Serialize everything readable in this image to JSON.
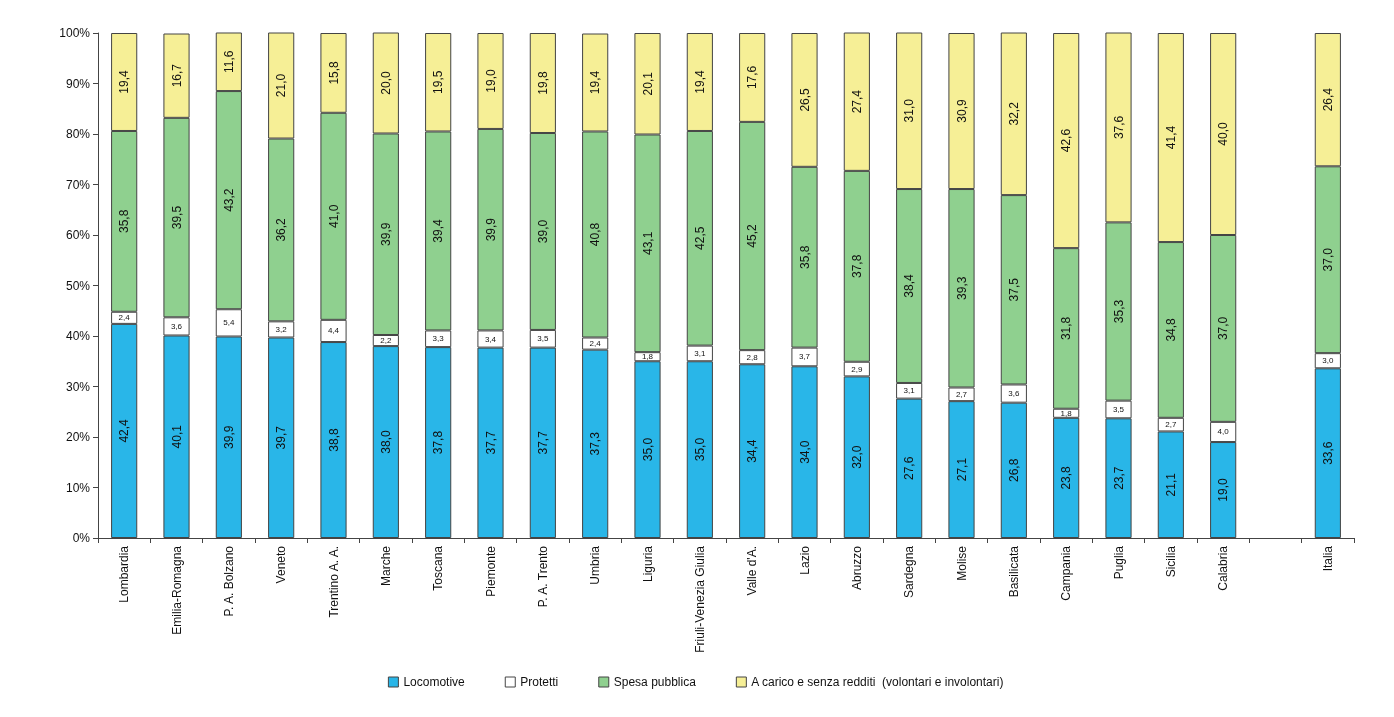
{
  "chart_data": {
    "type": "bar",
    "stacked": true,
    "categories": [
      "Lombardia",
      "Emilia-Romagna",
      "P. A. Bolzano",
      "Veneto",
      "Trentino A. A.",
      "Marche",
      "Toscana",
      "Piemonte",
      "P. A. Trento",
      "Umbria",
      "Liguria",
      "Friuli-Venezia Giulia",
      "Valle d'A.",
      "Lazio",
      "Abruzzo",
      "Sardegna",
      "Molise",
      "Basilicata",
      "Campania",
      "Puglia",
      "Sicilia",
      "Calabria",
      null,
      "Italia"
    ],
    "series": [
      {
        "name": "Locomotive",
        "color": "#29b6e8",
        "values": [
          42.4,
          40.1,
          39.9,
          39.7,
          38.8,
          38.0,
          37.8,
          37.7,
          37.7,
          37.3,
          35.0,
          35.0,
          34.4,
          34.0,
          32.0,
          27.6,
          27.1,
          26.8,
          23.8,
          23.7,
          21.1,
          19.0,
          null,
          33.6
        ],
        "value_labels": [
          "42,4",
          "40,1",
          "39,9",
          "39,7",
          "38,8",
          "38,0",
          "37,8",
          "37,7",
          "37,7",
          "37,3",
          "35,0",
          "35,0",
          "34,4",
          "34,0",
          "32,0",
          "27,6",
          "27,1",
          "26,8",
          "23,8",
          "23,7",
          "21,1",
          "19,0",
          null,
          "33,6"
        ]
      },
      {
        "name": "Protetti",
        "color": "#ffffff",
        "values": [
          2.4,
          3.6,
          5.4,
          3.2,
          4.4,
          2.2,
          3.3,
          3.4,
          3.5,
          2.4,
          1.8,
          3.1,
          2.8,
          3.7,
          2.9,
          3.1,
          2.7,
          3.6,
          1.8,
          3.5,
          2.7,
          4.0,
          null,
          3.0
        ],
        "value_labels": [
          "2,4",
          "3,6",
          "5,4",
          "3,2",
          "4,4",
          "2,2",
          "3,3",
          "3,4",
          "3,5",
          "2,4",
          "1,8",
          "3,1",
          "2,8",
          "3,7",
          "2,9",
          "3,1",
          "2,7",
          "3,6",
          "1,8",
          "3,5",
          "2,7",
          "4,0",
          null,
          "3,0"
        ]
      },
      {
        "name": "Spesa pubblica",
        "color": "#8fd08f",
        "values": [
          35.8,
          39.5,
          43.2,
          36.2,
          41.0,
          39.9,
          39.4,
          39.9,
          39.0,
          40.8,
          43.1,
          42.5,
          45.2,
          35.8,
          37.8,
          38.4,
          39.3,
          37.5,
          31.8,
          35.3,
          34.8,
          37.0,
          null,
          37.0
        ],
        "value_labels": [
          "35,8",
          "39,5",
          "43,2",
          "36,2",
          "41,0",
          "39,9",
          "39,4",
          "39,9",
          "39,0",
          "40,8",
          "43,1",
          "42,5",
          "45,2",
          "35,8",
          "37,8",
          "38,4",
          "39,3",
          "37,5",
          "31,8",
          "35,3",
          "34,8",
          "37,0",
          null,
          "37,0"
        ]
      },
      {
        "name": "A carico e senza redditi  (volontari e involontari)",
        "color": "#f6ef96",
        "values": [
          19.4,
          16.7,
          11.6,
          21.0,
          15.8,
          20.0,
          19.5,
          19.0,
          19.8,
          19.4,
          20.1,
          19.4,
          17.6,
          26.5,
          27.4,
          31.0,
          30.9,
          32.2,
          42.6,
          37.6,
          41.4,
          40.0,
          null,
          26.4
        ],
        "value_labels": [
          "19,4",
          "16,7",
          "11,6",
          "21,0",
          "15,8",
          "20,0",
          "19,5",
          "19,0",
          "19,8",
          "19,4",
          "20,1",
          "19,4",
          "17,6",
          "26,5",
          "27,4",
          "31,0",
          "30,9",
          "32,2",
          "42,6",
          "37,6",
          "41,4",
          "40,0",
          null,
          "26,4"
        ]
      }
    ],
    "ylim": [
      0,
      100
    ],
    "yticks": [
      {
        "value": 0,
        "label": "0%"
      },
      {
        "value": 10,
        "label": "10%"
      },
      {
        "value": 20,
        "label": "20%"
      },
      {
        "value": 30,
        "label": "30%"
      },
      {
        "value": 40,
        "label": "40%"
      },
      {
        "value": 50,
        "label": "50%"
      },
      {
        "value": 60,
        "label": "60%"
      },
      {
        "value": 70,
        "label": "70%"
      },
      {
        "value": 80,
        "label": "80%"
      },
      {
        "value": 90,
        "label": "90%"
      },
      {
        "value": 100,
        "label": "100%"
      }
    ],
    "grid": false,
    "legend": "bottom"
  }
}
